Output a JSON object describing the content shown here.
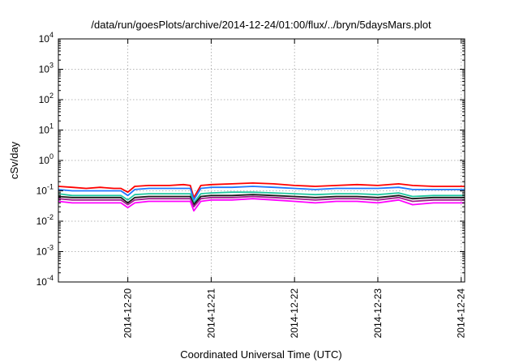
{
  "chart_data": {
    "type": "line",
    "title": "/data/run/goesPlots/archive/2014-12-24/01:00/flux/../bryn/5daysMars.plot",
    "xlabel": "Coordinated Universal Time (UTC)",
    "ylabel": "cSv/day",
    "yscale": "log",
    "ylim": [
      0.0001,
      10000
    ],
    "xlim": [
      "2014-12-19T04:00",
      "2014-12-24T01:00"
    ],
    "y_ticks": [
      {
        "value": 0.0001,
        "base": "10",
        "exp": "-4"
      },
      {
        "value": 0.001,
        "base": "10",
        "exp": "-3"
      },
      {
        "value": 0.01,
        "base": "10",
        "exp": "-2"
      },
      {
        "value": 0.1,
        "base": "10",
        "exp": "-1"
      },
      {
        "value": 1,
        "base": "10",
        "exp": "0"
      },
      {
        "value": 10,
        "base": "10",
        "exp": "1"
      },
      {
        "value": 100,
        "base": "10",
        "exp": "2"
      },
      {
        "value": 1000,
        "base": "10",
        "exp": "3"
      },
      {
        "value": 10000,
        "base": "10",
        "exp": "4"
      }
    ],
    "x_ticks": [
      {
        "value": "2014-12-20T00:00",
        "label": "2014-12-20"
      },
      {
        "value": "2014-12-21T00:00",
        "label": "2014-12-21"
      },
      {
        "value": "2014-12-22T00:00",
        "label": "2014-12-22"
      },
      {
        "value": "2014-12-23T00:00",
        "label": "2014-12-23"
      },
      {
        "value": "2014-12-24T00:00",
        "label": "2014-12-24"
      }
    ],
    "grid": true,
    "legend": "none",
    "x": [
      "2014-12-19T04:00",
      "2014-12-19T08:00",
      "2014-12-19T12:00",
      "2014-12-19T16:00",
      "2014-12-19T20:00",
      "2014-12-19T22:00",
      "2014-12-20T00:00",
      "2014-12-20T02:00",
      "2014-12-20T06:00",
      "2014-12-20T12:00",
      "2014-12-20T16:00",
      "2014-12-20T18:00",
      "2014-12-20T19:00",
      "2014-12-20T21:00",
      "2014-12-21T00:00",
      "2014-12-21T06:00",
      "2014-12-21T12:00",
      "2014-12-21T18:00",
      "2014-12-22T00:00",
      "2014-12-22T06:00",
      "2014-12-22T12:00",
      "2014-12-22T18:00",
      "2014-12-23T00:00",
      "2014-12-23T06:00",
      "2014-12-23T10:00",
      "2014-12-23T16:00",
      "2014-12-24T00:00",
      "2014-12-24T01:00"
    ],
    "series": [
      {
        "color": "#ff0000",
        "values": [
          0.14,
          0.13,
          0.12,
          0.13,
          0.12,
          0.12,
          0.09,
          0.14,
          0.15,
          0.15,
          0.16,
          0.15,
          0.06,
          0.15,
          0.16,
          0.17,
          0.18,
          0.17,
          0.15,
          0.14,
          0.15,
          0.16,
          0.15,
          0.17,
          0.15,
          0.14,
          0.14,
          0.14
        ]
      },
      {
        "color": "#1e78ff",
        "values": [
          0.11,
          0.1,
          0.1,
          0.1,
          0.1,
          0.1,
          0.07,
          0.11,
          0.12,
          0.12,
          0.12,
          0.12,
          0.05,
          0.12,
          0.13,
          0.13,
          0.14,
          0.13,
          0.12,
          0.11,
          0.12,
          0.12,
          0.12,
          0.13,
          0.11,
          0.11,
          0.11,
          0.11
        ]
      },
      {
        "color": "#20c8a0",
        "values": [
          0.08,
          0.07,
          0.07,
          0.07,
          0.07,
          0.07,
          0.05,
          0.075,
          0.08,
          0.08,
          0.08,
          0.08,
          0.04,
          0.08,
          0.085,
          0.09,
          0.09,
          0.085,
          0.08,
          0.075,
          0.08,
          0.08,
          0.075,
          0.085,
          0.065,
          0.07,
          0.07,
          0.07
        ]
      },
      {
        "color": "#1a1a1a",
        "values": [
          0.065,
          0.06,
          0.06,
          0.06,
          0.06,
          0.06,
          0.04,
          0.06,
          0.065,
          0.065,
          0.065,
          0.065,
          0.035,
          0.065,
          0.07,
          0.07,
          0.075,
          0.07,
          0.065,
          0.06,
          0.065,
          0.065,
          0.06,
          0.07,
          0.055,
          0.06,
          0.06,
          0.06
        ]
      },
      {
        "color": "#a0208c",
        "values": [
          0.055,
          0.05,
          0.05,
          0.05,
          0.05,
          0.05,
          0.035,
          0.05,
          0.055,
          0.055,
          0.055,
          0.055,
          0.03,
          0.055,
          0.06,
          0.06,
          0.065,
          0.06,
          0.055,
          0.05,
          0.055,
          0.055,
          0.05,
          0.06,
          0.045,
          0.05,
          0.05,
          0.05
        ]
      },
      {
        "color": "#ff00ff",
        "values": [
          0.045,
          0.04,
          0.04,
          0.04,
          0.04,
          0.04,
          0.028,
          0.04,
          0.045,
          0.045,
          0.045,
          0.045,
          0.022,
          0.045,
          0.05,
          0.05,
          0.055,
          0.05,
          0.045,
          0.04,
          0.045,
          0.045,
          0.04,
          0.05,
          0.035,
          0.04,
          0.04,
          0.04
        ]
      }
    ]
  }
}
